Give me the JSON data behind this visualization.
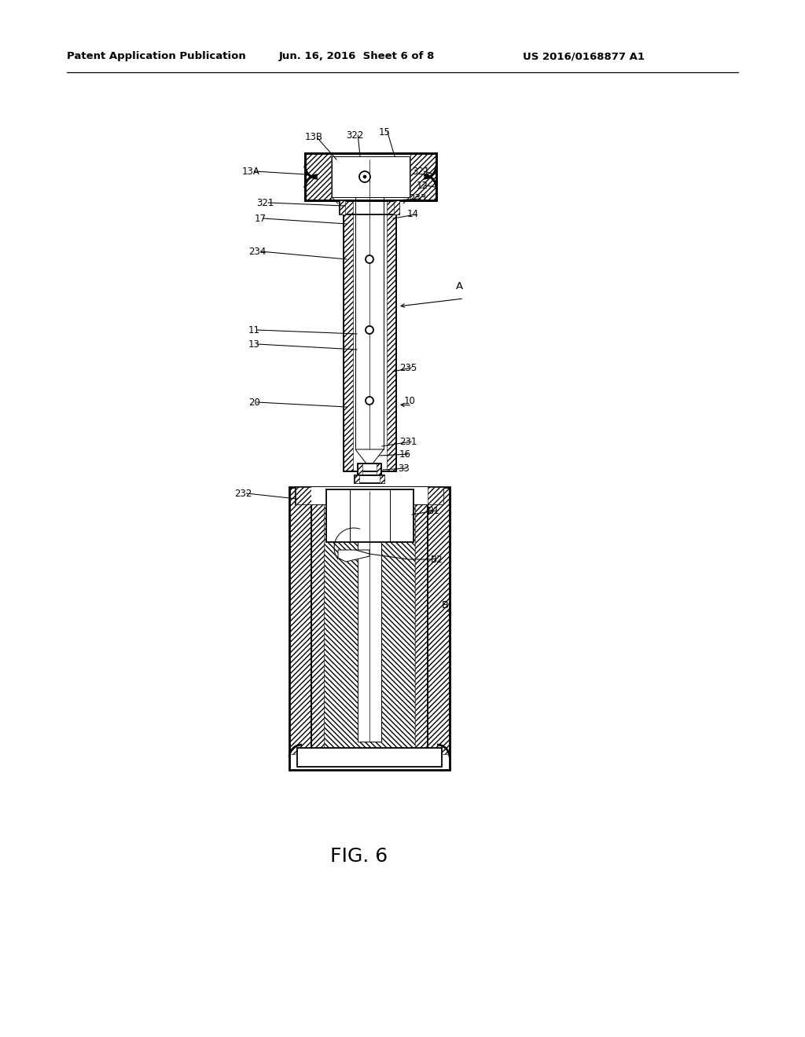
{
  "bg_color": "#ffffff",
  "fig_width": 10.24,
  "fig_height": 13.2,
  "dpi": 100,
  "header_left": "Patent Application Publication",
  "header_mid": "Jun. 16, 2016  Sheet 6 of 8",
  "header_right": "US 2016/0168877 A1",
  "fig_label": "FIG. 6"
}
